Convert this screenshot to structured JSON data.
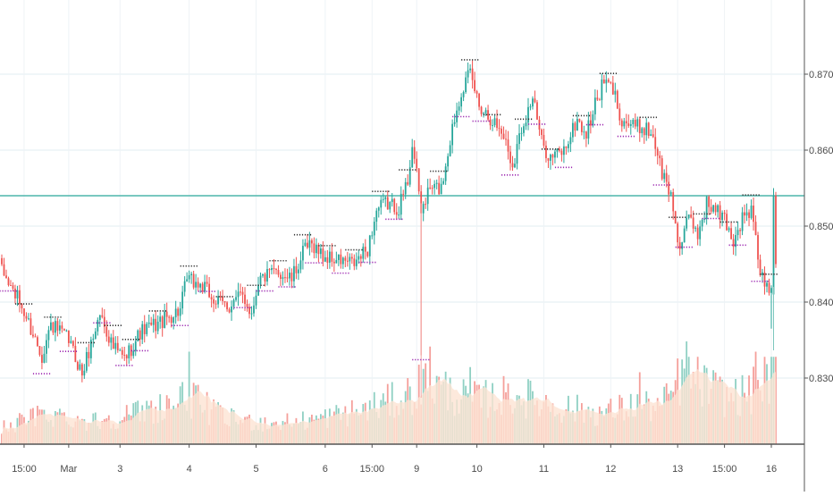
{
  "chart_data": {
    "type": "candlestick",
    "title": "",
    "xlabel": "",
    "ylabel": "",
    "ylim": [
      0.8155,
      0.88
    ],
    "y_ticks": [
      "0.87000",
      "0.86000",
      "0.85000",
      "0.84000",
      "0.83000"
    ],
    "y_tick_values": [
      0.87,
      0.86,
      0.85,
      0.84,
      0.83
    ],
    "x_ticks": [
      "15:00",
      "Mar",
      "3",
      "4",
      "5",
      "6",
      "15:00",
      "9",
      "10",
      "11",
      "12",
      "13",
      "15:00",
      "16"
    ],
    "x_tick_bars": [
      10,
      30,
      53,
      84,
      114,
      145,
      166,
      186,
      213,
      243,
      273,
      303,
      324,
      345
    ],
    "horizontal_line": 0.854,
    "grid": true,
    "colors": {
      "up": "#26a69a",
      "down": "#ef5350",
      "volume_up": "#8fd0c3",
      "volume_down": "#f59f9a",
      "volume_ma_fill": "#fde3d3",
      "grid": "#e1ecf2",
      "hline": "#4db6ac",
      "marker_high": "#333333",
      "marker_low": "#9c27b0"
    },
    "price_anchors": [
      [
        0,
        0.844
      ],
      [
        8,
        0.84
      ],
      [
        18,
        0.833
      ],
      [
        22,
        0.837
      ],
      [
        30,
        0.835
      ],
      [
        36,
        0.8305
      ],
      [
        44,
        0.8385
      ],
      [
        50,
        0.834
      ],
      [
        55,
        0.8325
      ],
      [
        62,
        0.836
      ],
      [
        72,
        0.8375
      ],
      [
        80,
        0.839
      ],
      [
        83,
        0.843
      ],
      [
        90,
        0.842
      ],
      [
        96,
        0.84
      ],
      [
        102,
        0.8395
      ],
      [
        108,
        0.841
      ],
      [
        112,
        0.8385
      ],
      [
        115,
        0.843
      ],
      [
        124,
        0.844
      ],
      [
        130,
        0.843
      ],
      [
        136,
        0.847
      ],
      [
        140,
        0.8475
      ],
      [
        144,
        0.846
      ],
      [
        150,
        0.8455
      ],
      [
        158,
        0.845
      ],
      [
        164,
        0.847
      ],
      [
        168,
        0.852
      ],
      [
        172,
        0.853
      ],
      [
        178,
        0.8525
      ],
      [
        182,
        0.856
      ],
      [
        184,
        0.861
      ],
      [
        188,
        0.852
      ],
      [
        192,
        0.855
      ],
      [
        197,
        0.855
      ],
      [
        202,
        0.863
      ],
      [
        206,
        0.868
      ],
      [
        210,
        0.87
      ],
      [
        214,
        0.866
      ],
      [
        220,
        0.864
      ],
      [
        225,
        0.862
      ],
      [
        229,
        0.858
      ],
      [
        233,
        0.863
      ],
      [
        238,
        0.867
      ],
      [
        242,
        0.861
      ],
      [
        246,
        0.859
      ],
      [
        252,
        0.86
      ],
      [
        258,
        0.864
      ],
      [
        262,
        0.862
      ],
      [
        266,
        0.866
      ],
      [
        270,
        0.869
      ],
      [
        274,
        0.868
      ],
      [
        278,
        0.864
      ],
      [
        284,
        0.863
      ],
      [
        288,
        0.863
      ],
      [
        292,
        0.862
      ],
      [
        296,
        0.857
      ],
      [
        300,
        0.854
      ],
      [
        304,
        0.847
      ],
      [
        308,
        0.851
      ],
      [
        312,
        0.849
      ],
      [
        316,
        0.853
      ],
      [
        320,
        0.852
      ],
      [
        324,
        0.851
      ],
      [
        328,
        0.848
      ],
      [
        332,
        0.851
      ],
      [
        336,
        0.852
      ],
      [
        340,
        0.844
      ],
      [
        344,
        0.841
      ],
      [
        347,
        0.845
      ]
    ],
    "volume_anchors": [
      [
        0,
        0.16
      ],
      [
        20,
        0.3
      ],
      [
        40,
        0.22
      ],
      [
        60,
        0.3
      ],
      [
        84,
        0.45
      ],
      [
        100,
        0.25
      ],
      [
        120,
        0.2
      ],
      [
        140,
        0.24
      ],
      [
        160,
        0.32
      ],
      [
        180,
        0.45
      ],
      [
        190,
        0.6
      ],
      [
        210,
        0.42
      ],
      [
        230,
        0.48
      ],
      [
        250,
        0.36
      ],
      [
        270,
        0.3
      ],
      [
        284,
        0.38
      ],
      [
        296,
        0.36
      ],
      [
        306,
        0.7
      ],
      [
        316,
        0.55
      ],
      [
        326,
        0.45
      ],
      [
        336,
        0.5
      ],
      [
        346,
        0.7
      ]
    ],
    "volume_spikes": [
      [
        84,
        0.9
      ],
      [
        192,
        0.95
      ],
      [
        210,
        0.75
      ],
      [
        286,
        0.7
      ],
      [
        307,
        1.0
      ],
      [
        338,
        0.9
      ],
      [
        342,
        0.85
      ]
    ],
    "marker_bars": [
      [
        3,
        "low"
      ],
      [
        10,
        "high"
      ],
      [
        18,
        "low"
      ],
      [
        23,
        "high"
      ],
      [
        30,
        "low"
      ],
      [
        38,
        "high"
      ],
      [
        45,
        "low"
      ],
      [
        50,
        "high"
      ],
      [
        55,
        "low"
      ],
      [
        58,
        "high"
      ],
      [
        62,
        "low"
      ],
      [
        70,
        "high"
      ],
      [
        80,
        "low"
      ],
      [
        84,
        "high"
      ],
      [
        92,
        "low"
      ],
      [
        100,
        "high"
      ],
      [
        108,
        "low"
      ],
      [
        114,
        "high"
      ],
      [
        118,
        "low"
      ],
      [
        124,
        "high"
      ],
      [
        128,
        "low"
      ],
      [
        135,
        "high"
      ],
      [
        140,
        "low"
      ],
      [
        146,
        "high"
      ],
      [
        152,
        "low"
      ],
      [
        158,
        "high"
      ],
      [
        164,
        "low"
      ],
      [
        170,
        "high"
      ],
      [
        176,
        "low"
      ],
      [
        182,
        "high"
      ],
      [
        188,
        "low"
      ],
      [
        196,
        "high"
      ],
      [
        206,
        "low"
      ],
      [
        210,
        "high"
      ],
      [
        215,
        "low"
      ],
      [
        220,
        "high"
      ],
      [
        228,
        "low"
      ],
      [
        234,
        "high"
      ],
      [
        240,
        "low"
      ],
      [
        246,
        "high"
      ],
      [
        252,
        "low"
      ],
      [
        260,
        "high"
      ],
      [
        266,
        "low"
      ],
      [
        272,
        "high"
      ],
      [
        280,
        "low"
      ],
      [
        290,
        "high"
      ],
      [
        296,
        "low"
      ],
      [
        303,
        "high"
      ],
      [
        306,
        "low"
      ],
      [
        314,
        "high"
      ],
      [
        318,
        "low"
      ],
      [
        326,
        "high"
      ],
      [
        330,
        "low"
      ],
      [
        336,
        "high"
      ],
      [
        340,
        "low"
      ],
      [
        344,
        "high"
      ]
    ],
    "bar_count": 348
  }
}
